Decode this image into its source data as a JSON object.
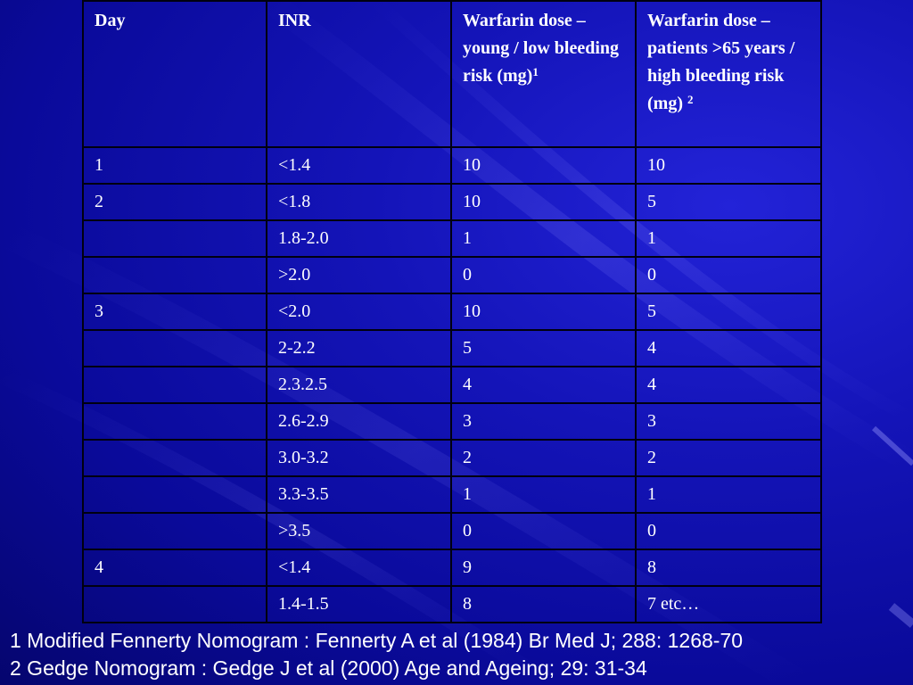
{
  "table": {
    "headers": {
      "day": "Day",
      "inr": "INR",
      "young": "Warfarin dose – young / low bleeding risk (mg)",
      "young_ref": "1",
      "elderly": "Warfarin dose – patients >65 years / high bleeding risk (mg)",
      "elderly_ref": "2"
    },
    "rows": [
      {
        "day": "1",
        "inr": "<1.4",
        "young": "10",
        "elderly": "10"
      },
      {
        "day": "2",
        "inr": "<1.8",
        "young": "10",
        "elderly": "5"
      },
      {
        "day": "",
        "inr": "1.8-2.0",
        "young": "1",
        "elderly": "1"
      },
      {
        "day": "",
        "inr": ">2.0",
        "young": "0",
        "elderly": "0"
      },
      {
        "day": "3",
        "inr": "<2.0",
        "young": "10",
        "elderly": "5"
      },
      {
        "day": "",
        "inr": "2-2.2",
        "young": "5",
        "elderly": "4"
      },
      {
        "day": "",
        "inr": "2.3.2.5",
        "young": "4",
        "elderly": "4"
      },
      {
        "day": "",
        "inr": "2.6-2.9",
        "young": "3",
        "elderly": "3"
      },
      {
        "day": "",
        "inr": "3.0-3.2",
        "young": "2",
        "elderly": "2"
      },
      {
        "day": "",
        "inr": "3.3-3.5",
        "young": "1",
        "elderly": "1"
      },
      {
        "day": "",
        "inr": ">3.5",
        "young": "0",
        "elderly": "0"
      },
      {
        "day": "4",
        "inr": "<1.4",
        "young": "9",
        "elderly": "8"
      },
      {
        "day": "",
        "inr": "1.4-1.5",
        "young": "8",
        "elderly": "7  etc…"
      }
    ]
  },
  "footnotes": [
    "1 Modified Fennerty Nomogram : Fennerty A et al (1984) Br Med J; 288: 1268-70",
    "2 Gedge Nomogram : Gedge J et al (2000) Age and Ageing; 29: 31-34"
  ],
  "colors": {
    "background": "#1414b8",
    "text": "#ffffff",
    "grid": "#000010"
  }
}
